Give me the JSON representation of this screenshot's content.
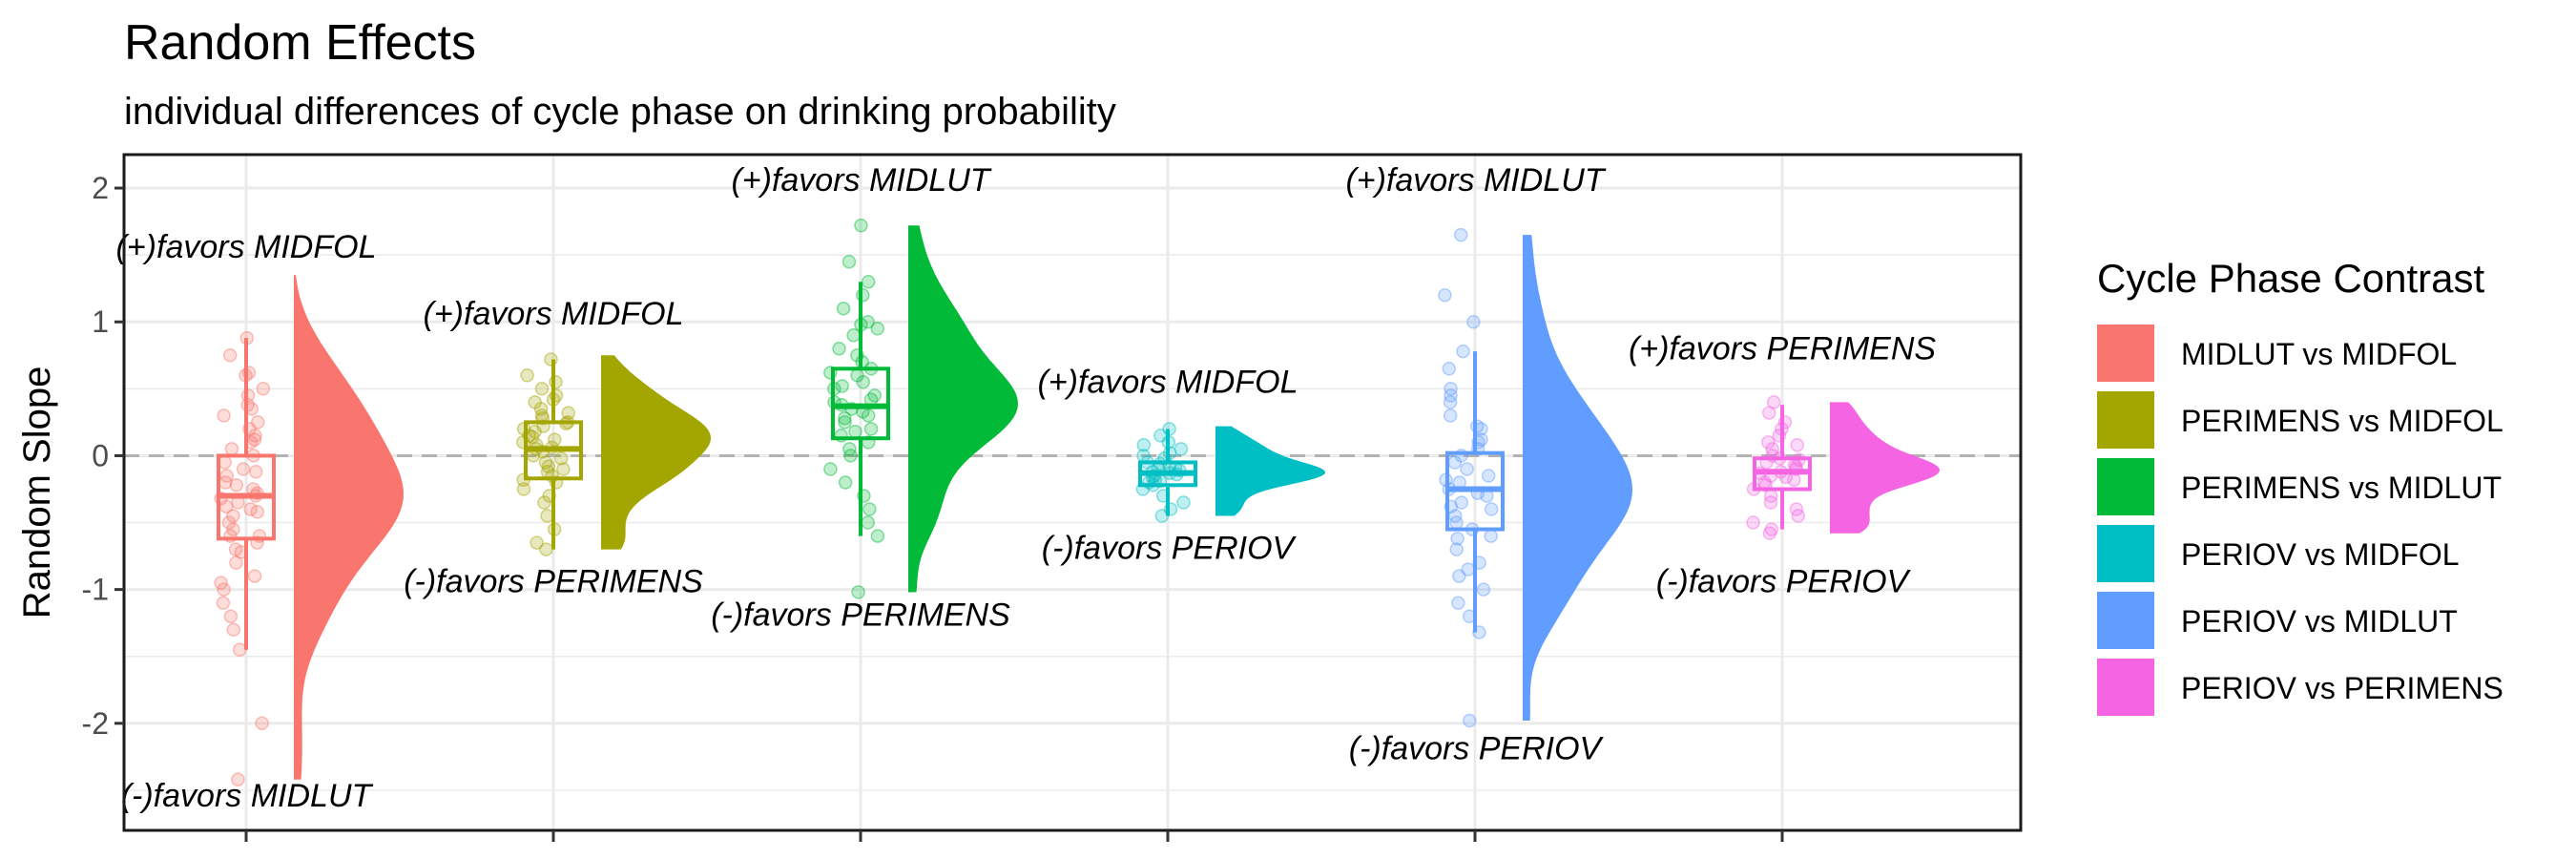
{
  "chart_data": {
    "type": "raincloud",
    "title": "Random Effects",
    "subtitle": "individual differences of cycle phase on drinking probability",
    "ylabel": "Random Slope",
    "ylim": [
      -2.8,
      2.25
    ],
    "yticks": [
      2,
      1,
      0,
      -1,
      -2
    ],
    "ytick_labels": [
      "2",
      "1",
      "0",
      "-1",
      "-2"
    ],
    "reference_line": 0,
    "grid": true,
    "legend": {
      "title": "Cycle Phase Contrast",
      "position": "right",
      "entries": [
        "MIDLUT vs MIDFOL",
        "PERIMENS vs MIDFOL",
        "PERIMENS vs MIDLUT",
        "PERIOV vs MIDFOL",
        "PERIOV vs MIDLUT",
        "PERIOV vs PERIMENS"
      ]
    },
    "series": [
      {
        "name": "MIDLUT vs MIDFOL",
        "color": "#F8766D",
        "box": {
          "q1": -0.62,
          "median": -0.3,
          "q3": 0.0,
          "whisker_low": -1.45,
          "whisker_high": 0.88
        },
        "range": [
          -2.42,
          1.35
        ],
        "points": [
          0.88,
          0.75,
          0.6,
          0.5,
          0.45,
          0.38,
          0.3,
          0.25,
          0.2,
          0.15,
          0.1,
          0.05,
          0.0,
          -0.05,
          -0.1,
          -0.15,
          -0.2,
          -0.25,
          -0.28,
          -0.3,
          -0.32,
          -0.35,
          -0.4,
          -0.45,
          -0.5,
          -0.55,
          -0.6,
          -0.65,
          -0.7,
          -0.8,
          -0.9,
          -1.0,
          -1.1,
          -1.2,
          -1.3,
          -1.45,
          -2.0,
          -2.42,
          0.35,
          -0.38,
          -0.22,
          -0.42,
          0.12,
          -0.6,
          -0.72,
          -0.12,
          0.62,
          -0.95
        ],
        "pos_label": "(+)favors MIDFOL",
        "neg_label": "(-)favors MIDLUT",
        "pos_label_y": 1.48,
        "neg_label_y": -2.62
      },
      {
        "name": "PERIMENS vs MIDFOL",
        "color": "#A3A500",
        "box": {
          "q1": -0.17,
          "median": 0.05,
          "q3": 0.25,
          "whisker_low": -0.7,
          "whisker_high": 0.72
        },
        "range": [
          -0.7,
          0.75
        ],
        "points": [
          0.72,
          0.6,
          0.55,
          0.5,
          0.45,
          0.4,
          0.35,
          0.3,
          0.28,
          0.25,
          0.22,
          0.2,
          0.18,
          0.15,
          0.12,
          0.1,
          0.08,
          0.05,
          0.03,
          0.0,
          -0.02,
          -0.05,
          -0.08,
          -0.1,
          -0.15,
          -0.2,
          -0.25,
          -0.3,
          -0.35,
          -0.45,
          -0.55,
          -0.65,
          -0.7,
          0.32,
          0.14,
          -0.12,
          0.24,
          0.06,
          -0.18,
          0.42
        ],
        "pos_label": "(+)favors MIDFOL",
        "neg_label": "(-)favors PERIMENS",
        "pos_label_y": 0.98,
        "neg_label_y": -1.02
      },
      {
        "name": "PERIMENS vs MIDLUT",
        "color": "#00BA38",
        "box": {
          "q1": 0.13,
          "median": 0.37,
          "q3": 0.65,
          "whisker_low": -0.6,
          "whisker_high": 1.3
        },
        "range": [
          -1.02,
          1.72
        ],
        "points": [
          1.72,
          1.45,
          1.3,
          1.2,
          1.1,
          1.0,
          0.95,
          0.9,
          0.8,
          0.75,
          0.7,
          0.65,
          0.6,
          0.55,
          0.5,
          0.45,
          0.4,
          0.38,
          0.35,
          0.3,
          0.25,
          0.2,
          0.15,
          0.1,
          0.05,
          0.0,
          -0.1,
          -0.2,
          -0.3,
          -0.4,
          -0.5,
          -0.6,
          -1.02,
          0.42,
          0.28,
          0.62,
          0.52,
          0.18,
          0.98,
          0.33
        ],
        "pos_label": "(+)favors MIDLUT",
        "neg_label": "(-)favors PERIMENS",
        "pos_label_y": 1.98,
        "neg_label_y": -1.27
      },
      {
        "name": "PERIOV vs MIDFOL",
        "color": "#00BFC4",
        "box": {
          "q1": -0.22,
          "median": -0.13,
          "q3": -0.05,
          "whisker_low": -0.45,
          "whisker_high": 0.2
        },
        "range": [
          -0.45,
          0.22
        ],
        "points": [
          0.2,
          0.15,
          0.1,
          0.05,
          0.02,
          0.0,
          -0.02,
          -0.05,
          -0.08,
          -0.1,
          -0.12,
          -0.13,
          -0.15,
          -0.18,
          -0.2,
          -0.22,
          -0.25,
          -0.3,
          -0.35,
          -0.4,
          -0.45,
          -0.14,
          -0.09,
          -0.16,
          -0.06,
          -0.19,
          0.08,
          -0.11
        ],
        "pos_label": "(+)favors MIDFOL",
        "neg_label": "(-)favors PERIOV",
        "pos_label_y": 0.47,
        "neg_label_y": -0.77
      },
      {
        "name": "PERIOV vs MIDLUT",
        "color": "#619CFF",
        "box": {
          "q1": -0.55,
          "median": -0.25,
          "q3": 0.02,
          "whisker_low": -1.32,
          "whisker_high": 0.78
        },
        "range": [
          -1.98,
          1.65
        ],
        "points": [
          1.65,
          1.2,
          1.0,
          0.78,
          0.65,
          0.5,
          0.4,
          0.3,
          0.2,
          0.1,
          0.05,
          0.0,
          -0.05,
          -0.1,
          -0.15,
          -0.2,
          -0.25,
          -0.3,
          -0.35,
          -0.4,
          -0.45,
          -0.5,
          -0.55,
          -0.6,
          -0.7,
          -0.8,
          -0.9,
          -1.0,
          -1.1,
          -1.2,
          -1.32,
          -1.98,
          -0.28,
          0.22,
          -0.62,
          -0.38,
          0.12,
          -0.18,
          0.45,
          -0.85
        ],
        "pos_label": "(+)favors MIDLUT",
        "neg_label": "(-)favors PERIOV",
        "pos_label_y": 1.98,
        "neg_label_y": -2.27
      },
      {
        "name": "PERIOV vs PERIMENS",
        "color": "#F564E3",
        "box": {
          "q1": -0.25,
          "median": -0.12,
          "q3": -0.02,
          "whisker_low": -0.55,
          "whisker_high": 0.38
        },
        "range": [
          -0.58,
          0.4
        ],
        "points": [
          0.4,
          0.32,
          0.25,
          0.2,
          0.15,
          0.1,
          0.05,
          0.0,
          -0.02,
          -0.05,
          -0.08,
          -0.1,
          -0.12,
          -0.15,
          -0.18,
          -0.2,
          -0.25,
          -0.3,
          -0.35,
          -0.4,
          -0.45,
          -0.5,
          -0.55,
          -0.58,
          -0.13,
          -0.07,
          -0.22,
          0.08,
          -0.16,
          -0.03
        ],
        "pos_label": "(+)favors PERIMENS",
        "neg_label": "(-)favors PERIOV",
        "pos_label_y": 0.72,
        "neg_label_y": -1.02
      }
    ]
  }
}
